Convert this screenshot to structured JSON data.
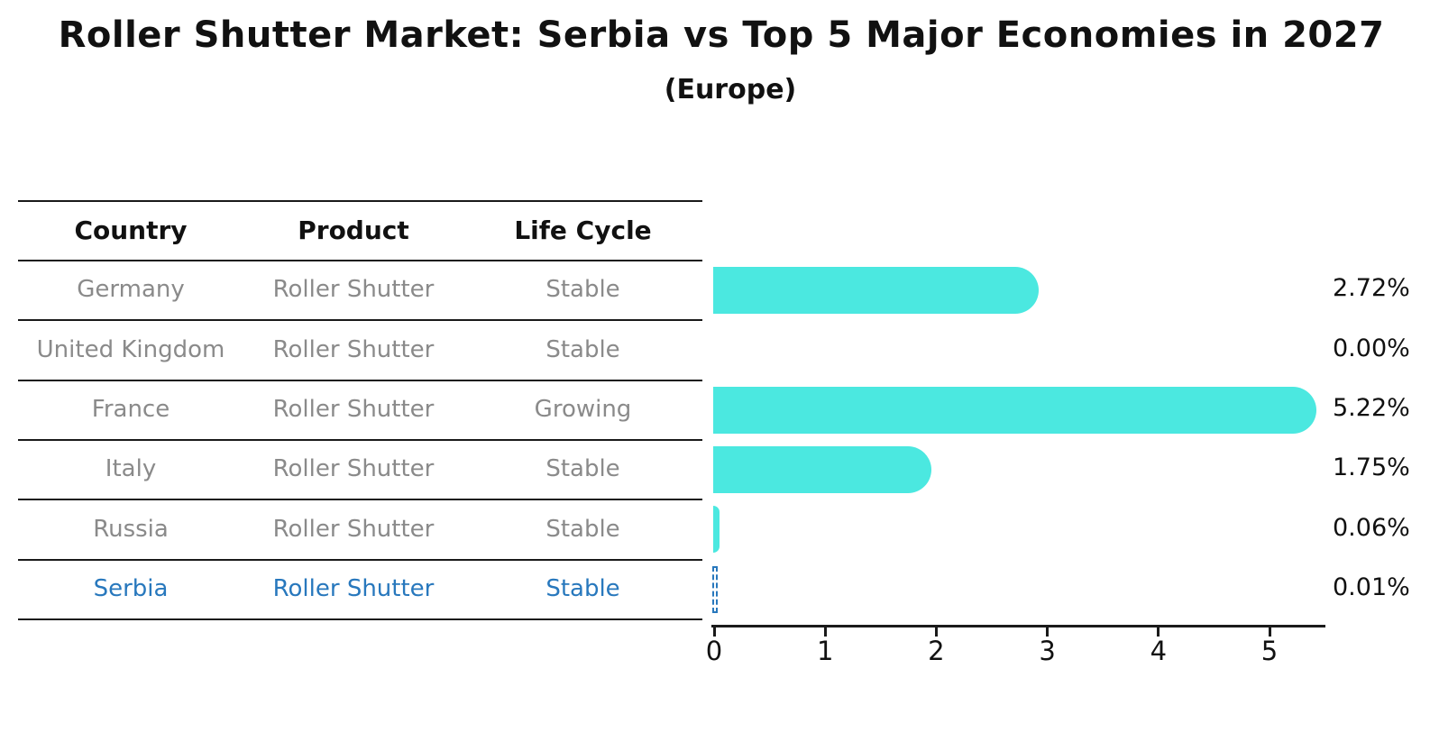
{
  "title": "Roller Shutter Market: Serbia vs Top 5 Major Economies in 2027",
  "subtitle": "(Europe)",
  "table": {
    "headers": [
      "Country",
      "Product",
      "Life Cycle"
    ],
    "rows": [
      {
        "country": "Germany",
        "product": "Roller Shutter",
        "life_cycle": "Stable",
        "highlight": false
      },
      {
        "country": "United Kingdom",
        "product": "Roller Shutter",
        "life_cycle": "Stable",
        "highlight": false
      },
      {
        "country": "France",
        "product": "Roller Shutter",
        "life_cycle": "Growing",
        "highlight": false
      },
      {
        "country": "Italy",
        "product": "Roller Shutter",
        "life_cycle": "Stable",
        "highlight": false
      },
      {
        "country": "Russia",
        "product": "Roller Shutter",
        "life_cycle": "Stable",
        "highlight": false
      },
      {
        "country": "Serbia",
        "product": "Roller Shutter",
        "life_cycle": "Stable",
        "highlight": true
      }
    ]
  },
  "chart_data": {
    "type": "bar",
    "orientation": "horizontal",
    "title": "Roller Shutter Market: Serbia vs Top 5 Major Economies in 2027",
    "subtitle": "(Europe)",
    "categories": [
      "Germany",
      "United Kingdom",
      "France",
      "Italy",
      "Russia",
      "Serbia"
    ],
    "values": [
      2.72,
      0.0,
      5.22,
      1.75,
      0.06,
      0.01
    ],
    "value_labels": [
      "2.72%",
      "0.00%",
      "5.22%",
      "1.75%",
      "0.06%",
      "0.01%"
    ],
    "xlabel": "",
    "ylabel": "",
    "xlim": [
      0,
      5.5
    ],
    "x_ticks": [
      "0",
      "1",
      "2",
      "3",
      "4",
      "5"
    ],
    "grid": false,
    "legend": false,
    "bar_color": "#4BE8E0",
    "highlight_color": "#2878BD",
    "highlight_index": 5,
    "highlight_style": "dashed-outline"
  },
  "colors": {
    "text_primary": "#111111",
    "text_muted": "#8a8a8a",
    "bar": "#4BE8E0",
    "highlight": "#2878BD",
    "line": "#1a1a1a"
  }
}
